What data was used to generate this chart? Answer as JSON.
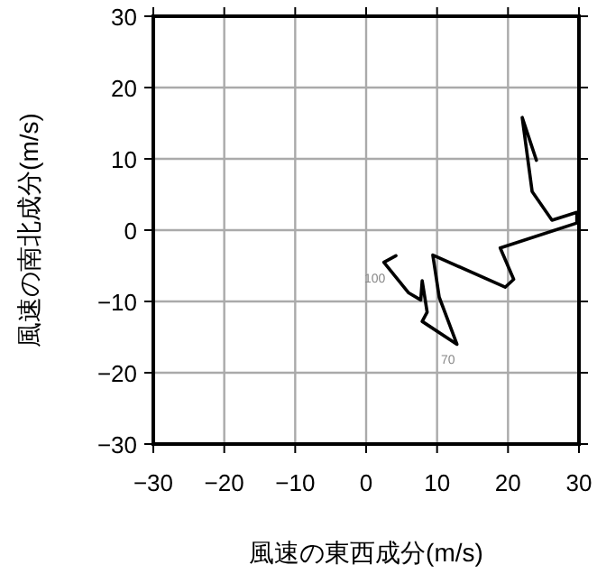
{
  "chart_data": {
    "type": "line",
    "xlabel": "風速の東西成分(m/s)",
    "ylabel": "風速の南北成分(m/s)",
    "xlim": [
      -30,
      30
    ],
    "ylim": [
      -30,
      30
    ],
    "xticks": [
      -30,
      -20,
      -10,
      0,
      10,
      20,
      30
    ],
    "yticks": [
      -30,
      -20,
      -10,
      0,
      10,
      20,
      30
    ],
    "grid": true,
    "marker": "none",
    "line_style": "solid",
    "series": [
      {
        "color": "#000000",
        "x": [
          4.2,
          2.5,
          6.0,
          7.7,
          7.9,
          8.6,
          7.9,
          12.8,
          10.3,
          9.4,
          19.6,
          20.8,
          18.9,
          29.7,
          29.7,
          26.2,
          23.4,
          22.0,
          24.0
        ],
        "values": [
          -3.6,
          -4.5,
          -8.8,
          -9.8,
          -7.1,
          -11.5,
          -12.8,
          -16.0,
          -9.4,
          -3.5,
          -8.0,
          -6.9,
          -2.5,
          1.0,
          2.5,
          1.4,
          5.4,
          15.8,
          9.8
        ]
      }
    ],
    "annotations": [
      {
        "text": "100",
        "x": 2.5,
        "y": -4.5
      },
      {
        "text": "70",
        "x": 12.8,
        "y": -16.0
      }
    ]
  }
}
